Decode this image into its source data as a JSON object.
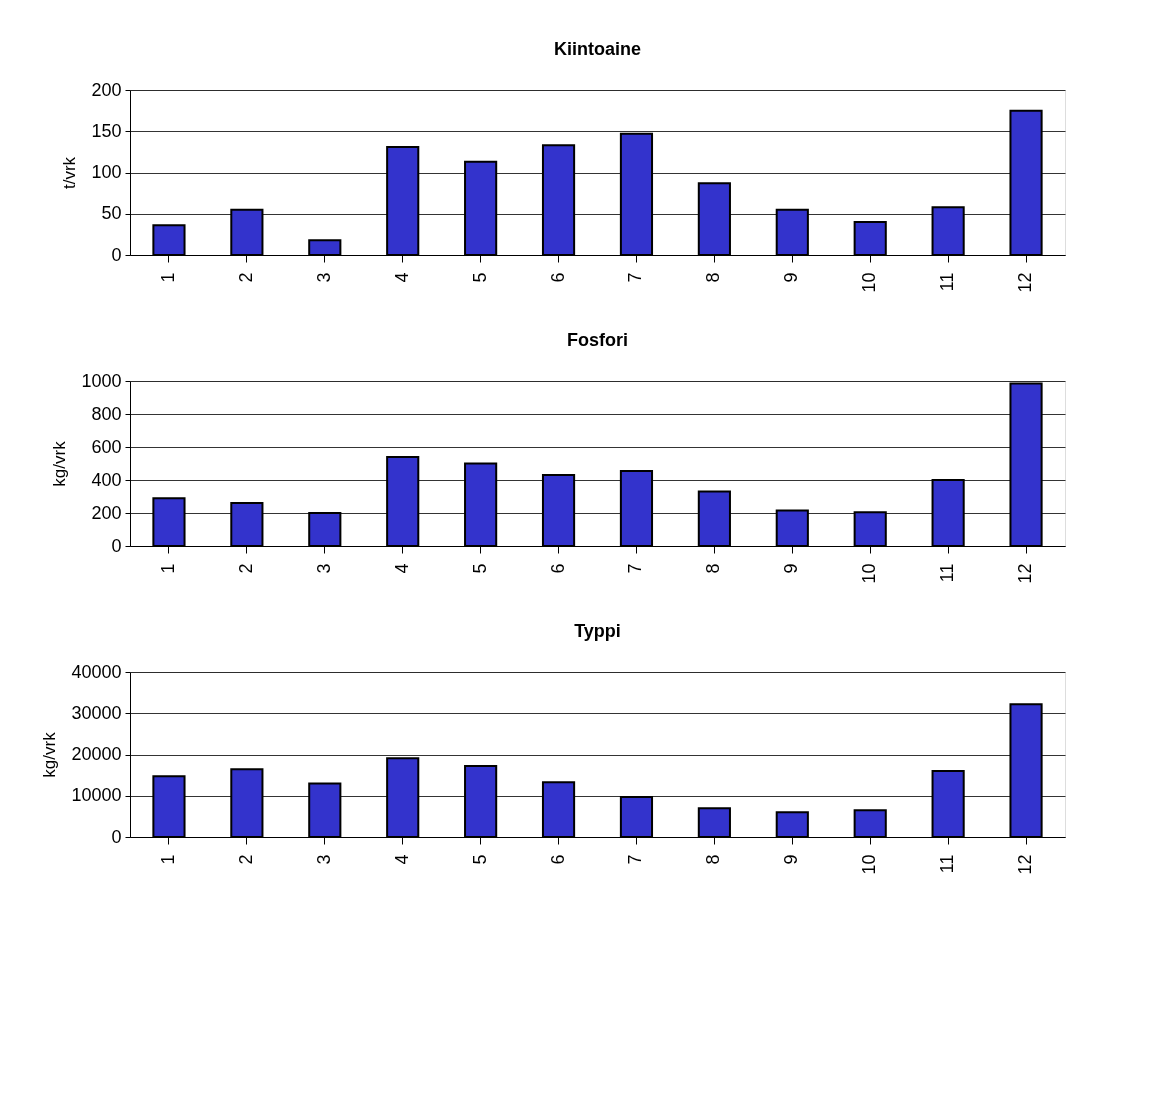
{
  "chart_data": [
    {
      "type": "bar",
      "title": "Kiintoaine",
      "ylabel": "t/vrk",
      "categories": [
        "1",
        "2",
        "3",
        "4",
        "5",
        "6",
        "7",
        "8",
        "9",
        "10",
        "11",
        "12"
      ],
      "values": [
        36,
        55,
        18,
        131,
        113,
        133,
        147,
        87,
        55,
        40,
        58,
        175
      ],
      "color": "#3333cc",
      "ylim": [
        0,
        200
      ],
      "yticks": [
        0,
        50,
        100,
        150,
        200
      ],
      "grid": "y"
    },
    {
      "type": "bar",
      "title": "Fosfori",
      "ylabel": "kg/vrk",
      "categories": [
        "1",
        "2",
        "3",
        "4",
        "5",
        "6",
        "7",
        "8",
        "9",
        "10",
        "11",
        "12"
      ],
      "values": [
        290,
        260,
        200,
        540,
        500,
        430,
        455,
        330,
        215,
        205,
        400,
        985
      ],
      "color": "#3333cc",
      "ylim": [
        0,
        1000
      ],
      "yticks": [
        0,
        200,
        400,
        600,
        800,
        1000
      ],
      "grid": "y"
    },
    {
      "type": "bar",
      "title": "Typpi",
      "ylabel": "kg/vrk",
      "categories": [
        "1",
        "2",
        "3",
        "4",
        "5",
        "6",
        "7",
        "8",
        "9",
        "10",
        "11",
        "12"
      ],
      "values": [
        14700,
        16400,
        13000,
        19100,
        17200,
        13300,
        9700,
        7000,
        6000,
        6500,
        16000,
        32200
      ],
      "color": "#3333cc",
      "ylim": [
        0,
        40000
      ],
      "yticks": [
        0,
        10000,
        20000,
        30000,
        40000
      ],
      "grid": "y"
    }
  ]
}
